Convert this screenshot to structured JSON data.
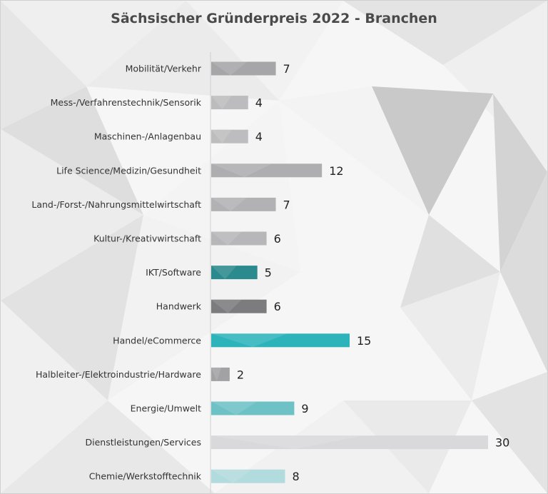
{
  "chart_data": {
    "type": "bar",
    "orientation": "horizontal",
    "title": "Sächsischer Gründerpreis 2022 - Branchen",
    "categories": [
      "Mobilität/Verkehr",
      "Mess-/Verfahrenstechnik/Sensorik",
      "Maschinen-/Anlagenbau",
      "Life Science/Medizin/Gesundheit",
      "Land-/Forst-/Nahrungsmittelwirtschaft",
      "Kultur-/Kreativwirtschaft",
      "IKT/Software",
      "Handwerk",
      "Handel/eCommerce",
      "Halbleiter-/Elektroindustrie/Hardware",
      "Energie/Umwelt",
      "Dienstleistungen/Services",
      "Chemie/Werkstofftechnik"
    ],
    "values": [
      7,
      4,
      4,
      12,
      7,
      6,
      5,
      6,
      15,
      2,
      9,
      30,
      8
    ],
    "bar_colors": [
      "#a6a6a8",
      "#bcbcbe",
      "#bdbdbf",
      "#aeaeb0",
      "#b2b2b4",
      "#b7b7b9",
      "#2b8a8d",
      "#7c7c7e",
      "#2cb4ba",
      "#a2a2a4",
      "#6ec1c5",
      "#d9d9db",
      "#b2dbdd"
    ],
    "xlim": [
      0,
      30
    ],
    "grid": false,
    "data_labels": true,
    "legend": "none"
  }
}
